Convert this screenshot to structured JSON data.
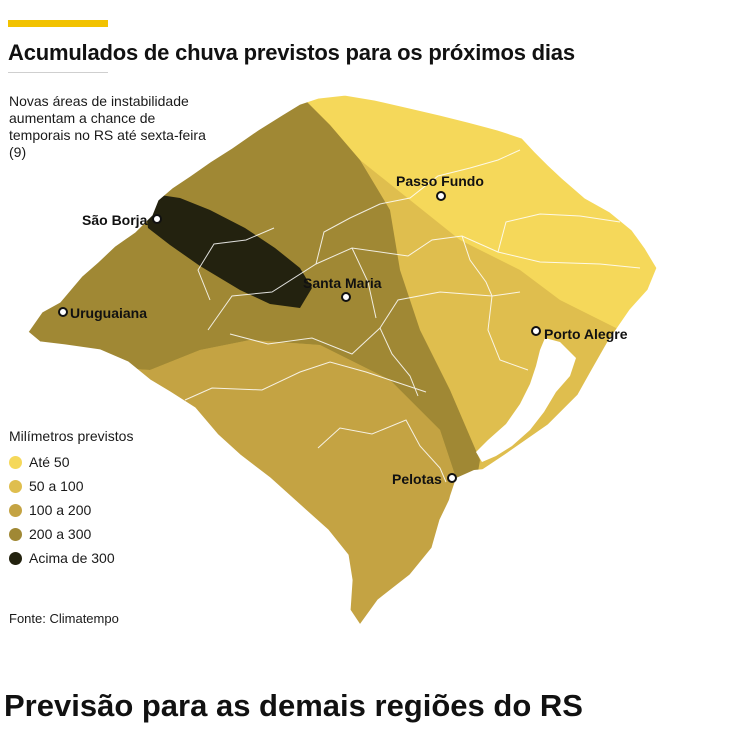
{
  "header": {
    "title": "Acumulados de chuva previstos para os próximos dias",
    "subtitle": "Novas áreas de instabilidade aumentam a chance de temporais no RS até sexta-feira (9)",
    "accent_color": "#f2c200"
  },
  "map": {
    "cities": [
      {
        "name": "Passo Fundo"
      },
      {
        "name": "São Borja"
      },
      {
        "name": "Santa Maria"
      },
      {
        "name": "Uruguaiana"
      },
      {
        "name": "Porto Alegre"
      },
      {
        "name": "Pelotas"
      }
    ]
  },
  "legend": {
    "title": "Milímetros previstos",
    "items": [
      {
        "label": "Até 50",
        "color": "#f5d85a"
      },
      {
        "label": "50 a 100",
        "color": "#dfbe4e"
      },
      {
        "label": "100 a 200",
        "color": "#c4a343"
      },
      {
        "label": "200 a 300",
        "color": "#a08834"
      },
      {
        "label": "Acima de 300",
        "color": "#23220f"
      }
    ]
  },
  "source": "Fonte: Climatempo",
  "footer": {
    "next_section_title": "Previsão para as demais regiões do RS"
  }
}
